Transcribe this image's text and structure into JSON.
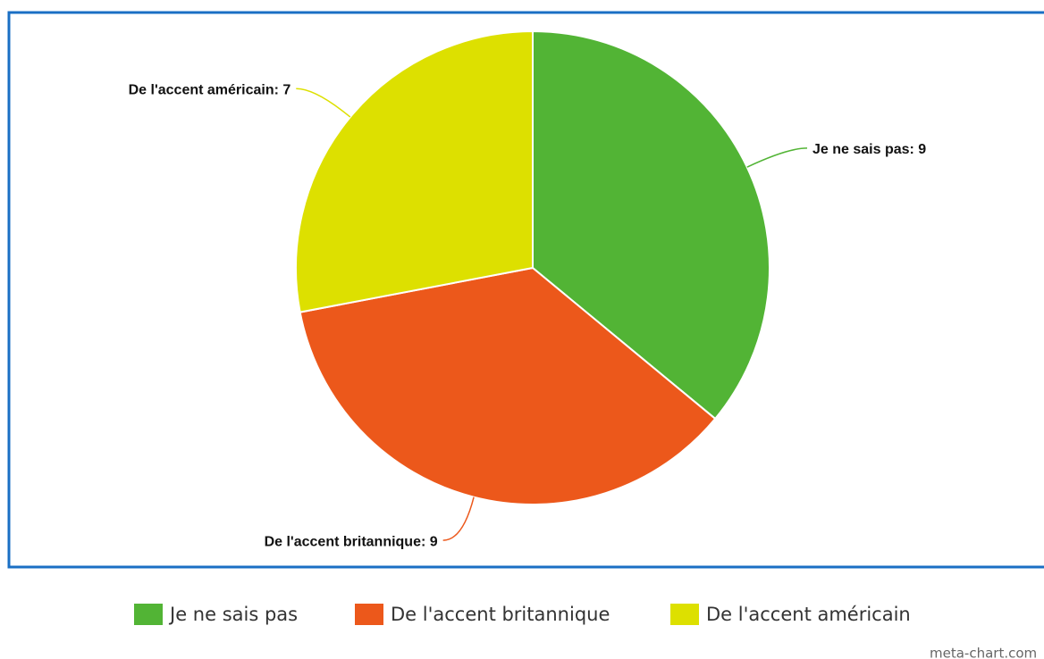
{
  "chart_data": {
    "type": "pie",
    "categories": [
      "Je ne sais pas",
      "De l'accent britannique",
      "De l'accent américain"
    ],
    "values": [
      9,
      9,
      7
    ],
    "value_labels": [
      "Je ne sais pas: 9",
      "De l'accent britannique: 9",
      "De l'accent américain: 7"
    ],
    "colors": [
      "#52b435",
      "#ec581b",
      "#dde000"
    ],
    "legend": "bottom",
    "credit": "meta-chart.com"
  }
}
